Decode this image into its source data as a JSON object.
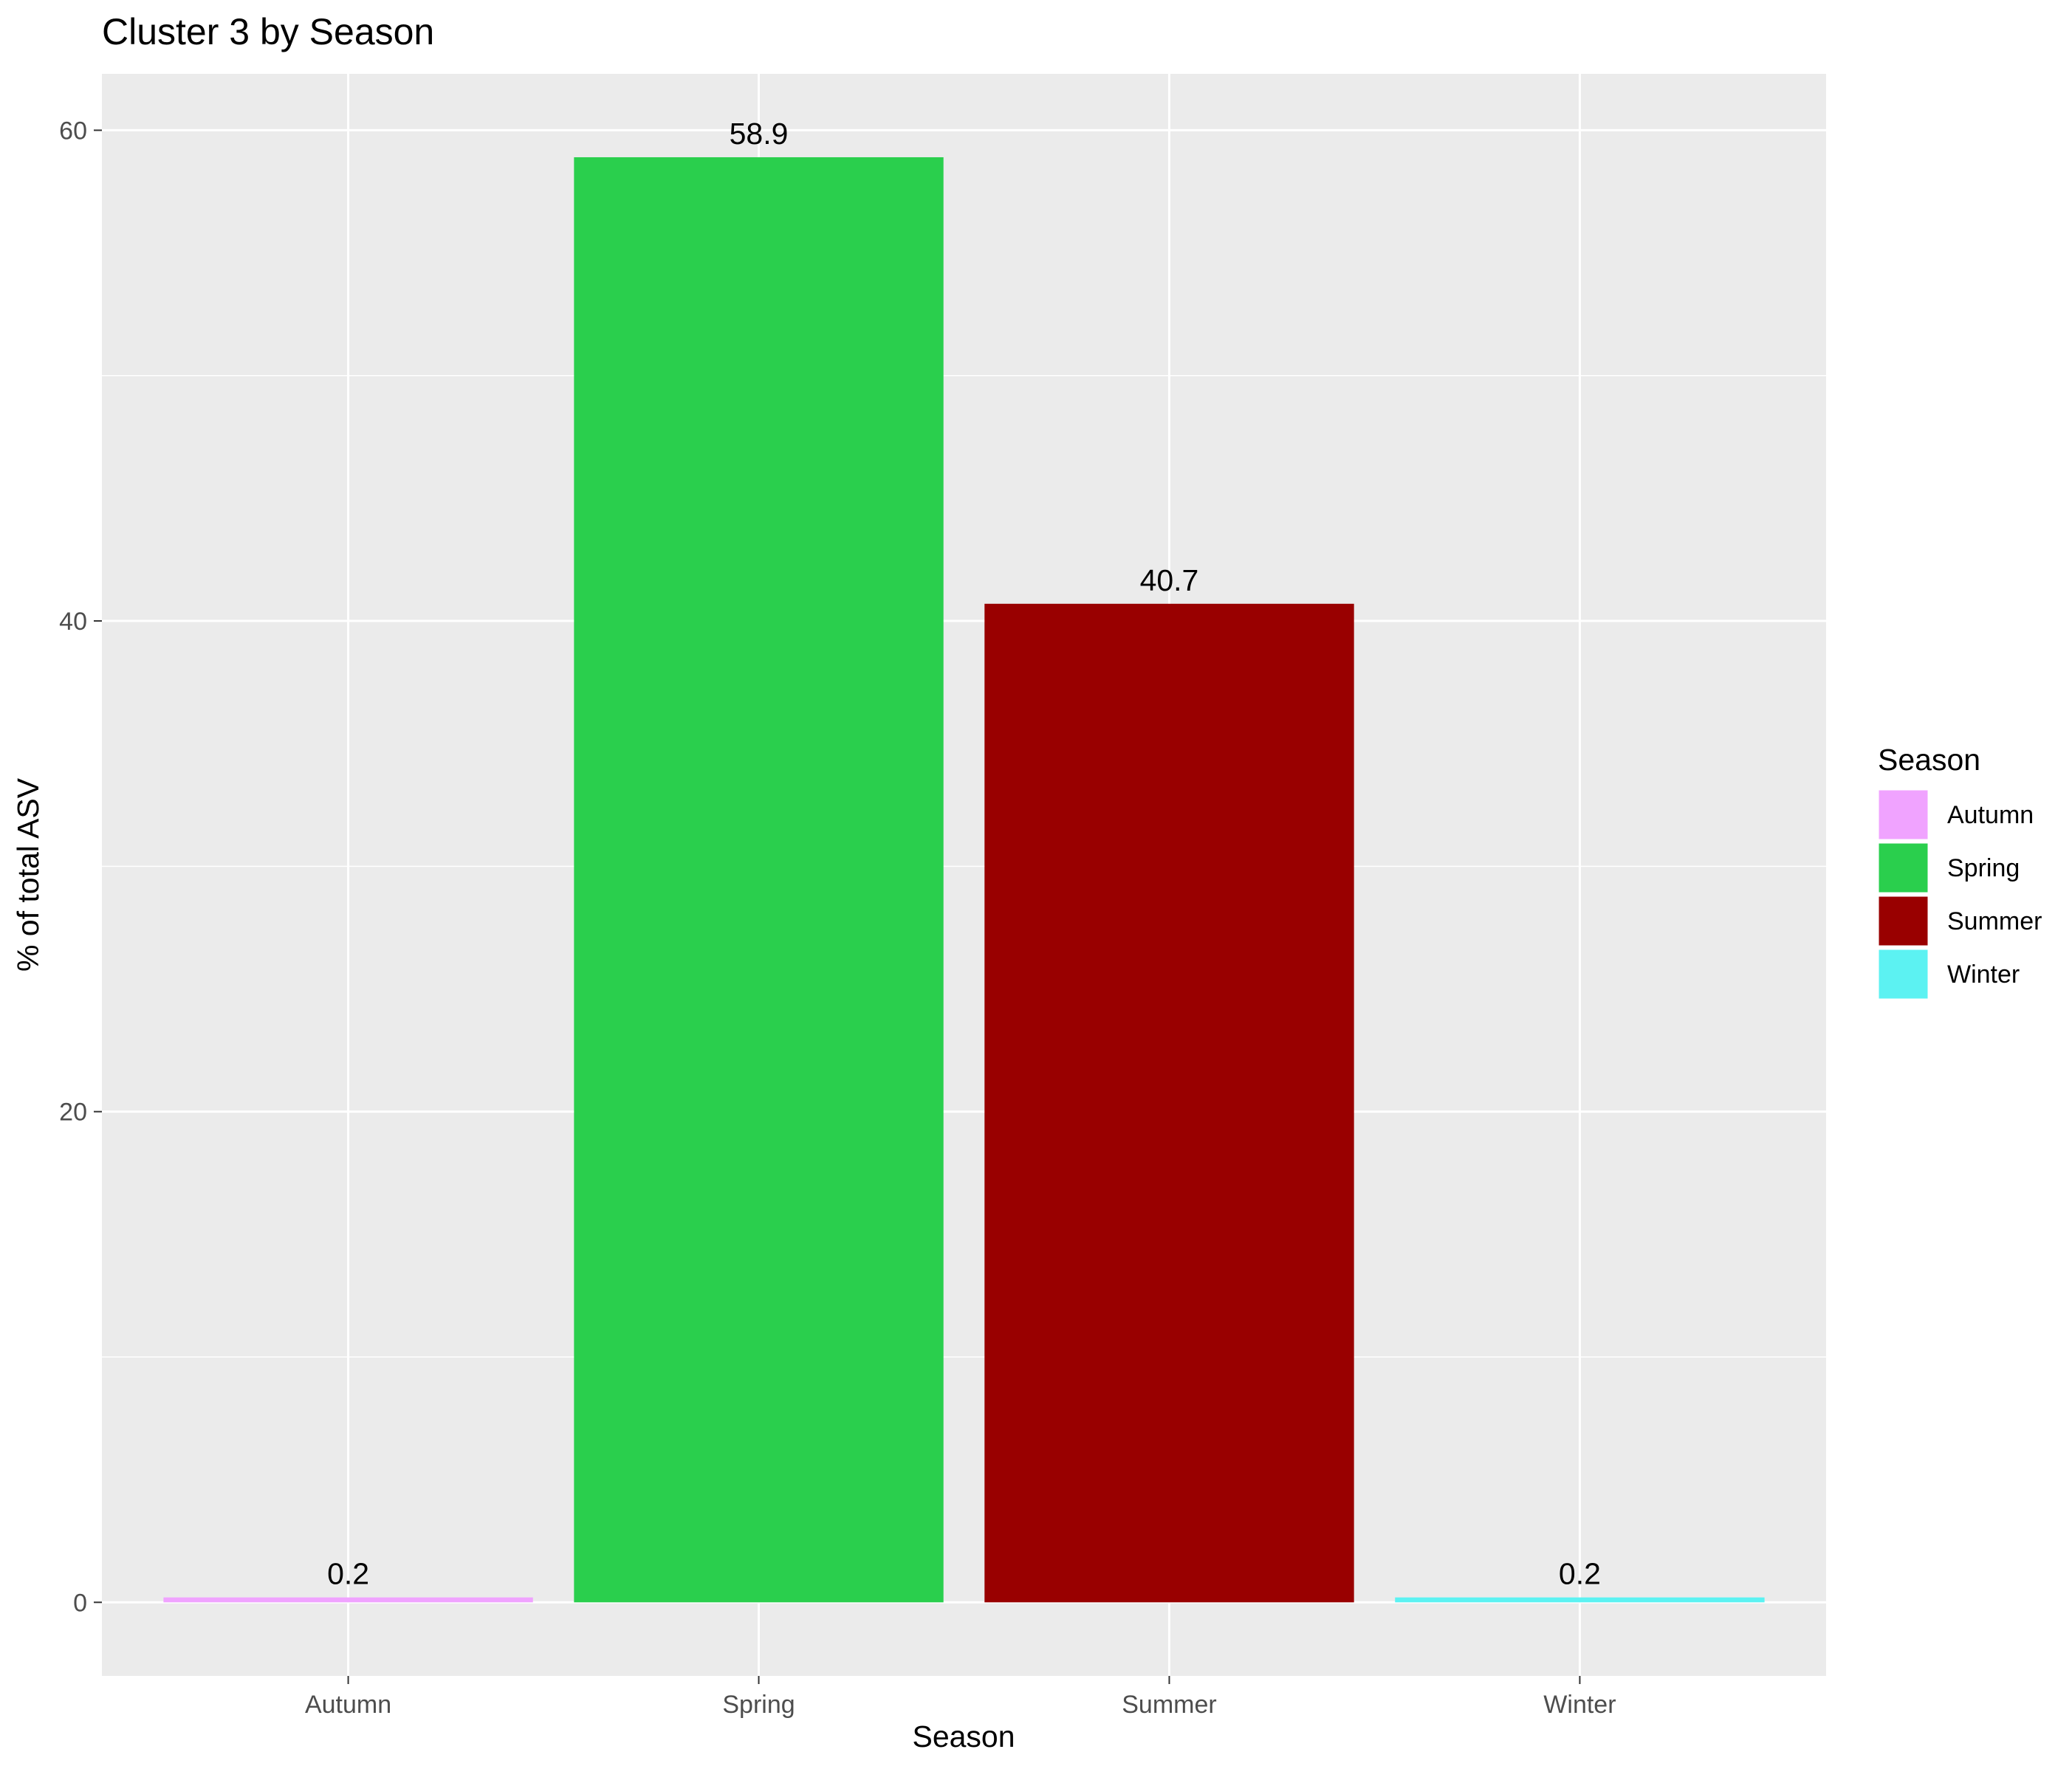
{
  "chart_data": {
    "type": "bar",
    "title": "Cluster 3 by Season",
    "xlabel": "Season",
    "ylabel": "% of total ASV",
    "categories": [
      "Autumn",
      "Spring",
      "Summer",
      "Winter"
    ],
    "values": [
      0.2,
      58.9,
      40.7,
      0.2
    ],
    "data_labels": [
      "0.2",
      "58.9",
      "40.7",
      "0.2"
    ],
    "colors": [
      "#F0A3FF",
      "#2ACF4D",
      "#990000",
      "#5CF2F2"
    ],
    "ylim": [
      -3,
      62.3
    ],
    "yticks": [
      0,
      20,
      40,
      60
    ],
    "yticks_minor": [
      10,
      30,
      50
    ],
    "grid": true,
    "panel_background": "#EBEBEB",
    "legend": {
      "title": "Season",
      "position": "right",
      "entries": [
        "Autumn",
        "Spring",
        "Summer",
        "Winter"
      ]
    }
  }
}
